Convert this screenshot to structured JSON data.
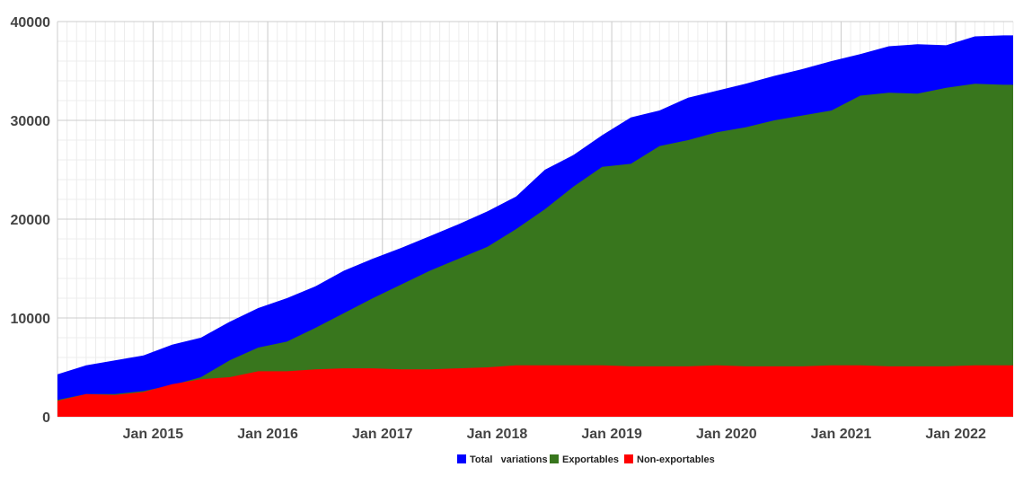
{
  "chart_data": {
    "type": "area",
    "title": "",
    "xlabel": "",
    "ylabel": "",
    "ylim": [
      0,
      40000
    ],
    "yticks": [
      "0",
      "10000",
      "20000",
      "30000",
      "40000"
    ],
    "x_range": [
      "2014-03",
      "2022-07"
    ],
    "xticks": [
      "Jan 2015",
      "Jan 2016",
      "Jan 2017",
      "Jan 2018",
      "Jan 2019",
      "Jan 2020",
      "Jan 2021",
      "Jan 2022"
    ],
    "grid": true,
    "stacked": false,
    "legend_position": "bottom",
    "x": [
      "2014-03",
      "2014-06",
      "2014-09",
      "2014-12",
      "2015-03",
      "2015-06",
      "2015-09",
      "2015-12",
      "2016-03",
      "2016-06",
      "2016-09",
      "2016-12",
      "2017-03",
      "2017-06",
      "2017-09",
      "2017-12",
      "2018-03",
      "2018-06",
      "2018-09",
      "2018-12",
      "2019-03",
      "2019-06",
      "2019-09",
      "2019-12",
      "2020-03",
      "2020-06",
      "2020-09",
      "2020-12",
      "2021-03",
      "2021-06",
      "2021-09",
      "2021-12",
      "2022-03",
      "2022-06",
      "2022-07"
    ],
    "series": [
      {
        "name": "Total   variations",
        "color": "#0000ff",
        "values": [
          4300,
          5200,
          5700,
          6200,
          7300,
          8000,
          9600,
          11000,
          12000,
          13200,
          14800,
          16000,
          17100,
          18300,
          19500,
          20800,
          22300,
          25000,
          26500,
          28500,
          30300,
          31000,
          32300,
          33000,
          33700,
          34500,
          35200,
          36000,
          36700,
          37500,
          37700,
          37600,
          38500,
          38600,
          38600
        ]
      },
      {
        "name": "Exportables",
        "color": "#38761d",
        "values": [
          1700,
          2300,
          2300,
          2600,
          3200,
          4000,
          5700,
          7000,
          7600,
          9000,
          10500,
          12000,
          13400,
          14800,
          16000,
          17200,
          19000,
          21000,
          23300,
          25300,
          25600,
          27400,
          28000,
          28800,
          29300,
          30000,
          30500,
          31000,
          32500,
          32800,
          32700,
          33300,
          33700,
          33600,
          33600
        ]
      },
      {
        "name": "Non-exportables",
        "color": "#ff0000",
        "values": [
          1600,
          2300,
          2200,
          2500,
          3300,
          3800,
          4000,
          4600,
          4600,
          4800,
          4900,
          4900,
          4800,
          4800,
          4900,
          5000,
          5200,
          5200,
          5200,
          5200,
          5100,
          5100,
          5100,
          5200,
          5100,
          5100,
          5100,
          5200,
          5200,
          5100,
          5100,
          5100,
          5200,
          5200,
          5200
        ]
      }
    ]
  }
}
